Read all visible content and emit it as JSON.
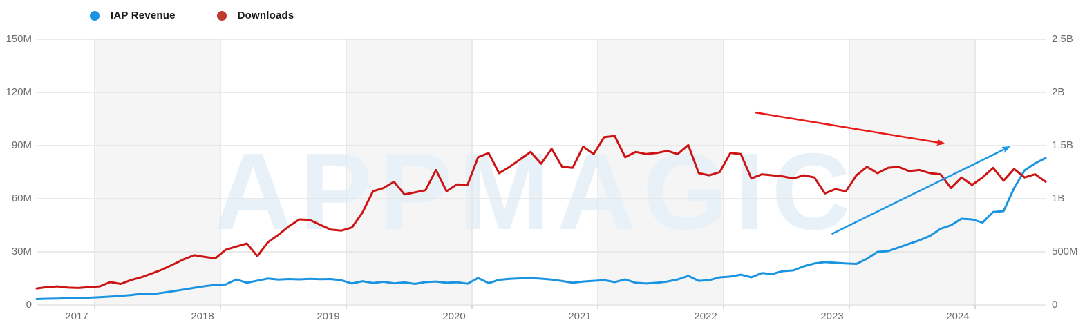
{
  "legend": {
    "items": [
      {
        "label": "IAP Revenue",
        "color": "#1a93e0"
      },
      {
        "label": "Downloads",
        "color": "#c0392b"
      }
    ]
  },
  "axes": {
    "left": {
      "labels": [
        "150M",
        "120M",
        "90M",
        "60M",
        "30M",
        "0"
      ],
      "max_value_m": 150
    },
    "right": {
      "labels": [
        "2.5B",
        "2B",
        "1.5B",
        "1B",
        "500M",
        "0"
      ],
      "max_value_b": 2.5
    },
    "x": {
      "labels": [
        "2017",
        "2018",
        "2019",
        "2020",
        "2021",
        "2022",
        "2023",
        "2024"
      ]
    }
  },
  "watermark": {
    "text": "APPMAGIC",
    "color": "#e8f1f8"
  },
  "chart_data": {
    "type": "line",
    "title": "",
    "x_interval": "monthly",
    "x_range": "mid-2016 to mid-2024",
    "grid": true,
    "shaded_year_bands": [
      2017,
      2019,
      2021,
      2023
    ],
    "colors": {
      "grid": "#e4e4e4",
      "band": "#f5f5f5",
      "tick": "#cccccc"
    },
    "series": [
      {
        "name": "IAP Revenue",
        "axis": "left",
        "unit": "M USD",
        "color": "#1a93e0",
        "values": [
          3.3,
          3.5,
          3.6,
          3.8,
          3.9,
          4.1,
          4.4,
          4.7,
          5.1,
          5.6,
          6.3,
          6.1,
          6.9,
          7.8,
          8.7,
          9.7,
          10.6,
          11.3,
          11.6,
          14.4,
          12.5,
          13.7,
          14.9,
          14.3,
          14.6,
          14.4,
          14.7,
          14.5,
          14.6,
          13.9,
          12.1,
          13.4,
          12.4,
          13.1,
          12.2,
          12.7,
          11.9,
          12.9,
          13.2,
          12.5,
          12.8,
          12.0,
          15.2,
          12.3,
          14.2,
          14.7,
          15.0,
          15.2,
          14.8,
          14.3,
          13.5,
          12.5,
          13.2,
          13.6,
          14.0,
          12.9,
          14.4,
          12.5,
          12.1,
          12.5,
          13.2,
          14.4,
          16.4,
          13.6,
          14.0,
          15.6,
          16.0,
          17.1,
          15.6,
          18.0,
          17.5,
          19.1,
          19.5,
          21.8,
          23.4,
          24.2,
          23.8,
          23.4,
          23.2,
          26.1,
          30.0,
          30.4,
          32.4,
          34.5,
          36.5,
          39.0,
          43.0,
          45.0,
          48.7,
          48.3,
          46.5,
          52.5,
          53.0,
          66.0,
          76.0,
          80.0,
          83.0
        ]
      },
      {
        "name": "Downloads",
        "axis": "right",
        "unit": "B",
        "color": "#cc1414",
        "values": [
          0.155,
          0.168,
          0.175,
          0.163,
          0.16,
          0.168,
          0.175,
          0.215,
          0.198,
          0.235,
          0.262,
          0.298,
          0.335,
          0.382,
          0.43,
          0.468,
          0.452,
          0.438,
          0.52,
          0.55,
          0.578,
          0.46,
          0.59,
          0.66,
          0.74,
          0.805,
          0.8,
          0.753,
          0.71,
          0.7,
          0.73,
          0.87,
          1.07,
          1.1,
          1.16,
          1.04,
          1.06,
          1.08,
          1.27,
          1.07,
          1.135,
          1.13,
          1.39,
          1.43,
          1.24,
          1.3,
          1.37,
          1.44,
          1.33,
          1.47,
          1.3,
          1.29,
          1.49,
          1.42,
          1.58,
          1.59,
          1.39,
          1.44,
          1.42,
          1.43,
          1.45,
          1.42,
          1.505,
          1.24,
          1.22,
          1.25,
          1.43,
          1.42,
          1.19,
          1.23,
          1.22,
          1.21,
          1.19,
          1.22,
          1.2,
          1.05,
          1.09,
          1.07,
          1.22,
          1.3,
          1.24,
          1.29,
          1.3,
          1.26,
          1.27,
          1.24,
          1.23,
          1.1,
          1.2,
          1.13,
          1.2,
          1.29,
          1.17,
          1.28,
          1.2,
          1.23,
          1.16
        ]
      }
    ],
    "annotations": [
      {
        "kind": "arrow",
        "meaning": "downloads-declining",
        "color": "#ea1919",
        "from": {
          "year": 2022.25,
          "value_m": 108.7
        },
        "to": {
          "year": 2023.75,
          "value_m": 91.2
        }
      },
      {
        "kind": "arrow",
        "meaning": "revenue-rising",
        "color": "#1e96e8",
        "from": {
          "year": 2022.86,
          "value_m": 40.1
        },
        "to": {
          "year": 2024.27,
          "value_m": 89.2
        }
      }
    ]
  }
}
